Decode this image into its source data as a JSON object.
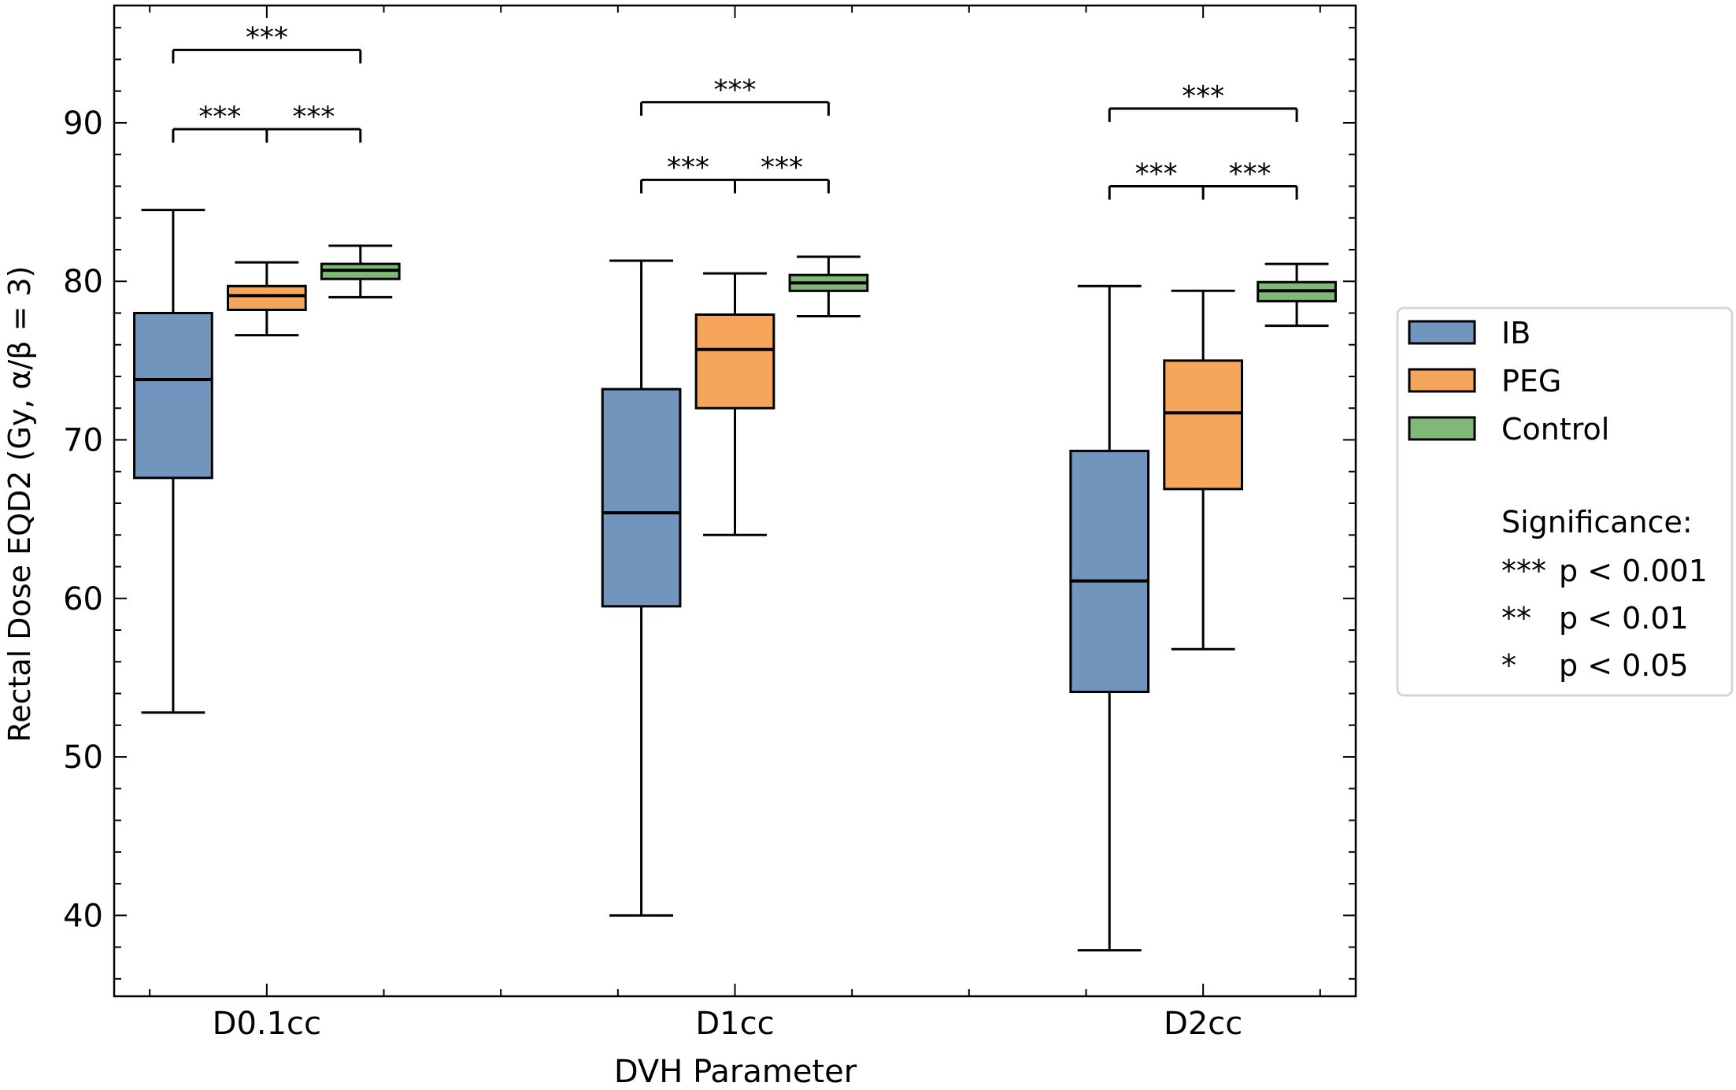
{
  "chart_data": {
    "type": "boxplot",
    "title": "",
    "xlabel": "DVH Parameter",
    "ylabel": "Rectal Dose EQD2 (Gy, α/β = 3)",
    "categories": [
      "D0.1cc",
      "D1cc",
      "D2cc"
    ],
    "ylim": [
      34.9,
      97.4
    ],
    "yticks": [
      40,
      50,
      60,
      70,
      80,
      90
    ],
    "yminor_step": 2,
    "grid": false,
    "legend_position": "outside-right",
    "series": [
      {
        "name": "IB",
        "color": "#7295bd",
        "boxes": [
          {
            "whisker_low": 52.8,
            "q1": 67.6,
            "median": 73.8,
            "q3": 78.0,
            "whisker_high": 84.5
          },
          {
            "whisker_low": 40.0,
            "q1": 59.5,
            "median": 65.4,
            "q3": 73.2,
            "whisker_high": 81.3
          },
          {
            "whisker_low": 37.8,
            "q1": 54.1,
            "median": 61.1,
            "q3": 69.3,
            "whisker_high": 79.7
          }
        ]
      },
      {
        "name": "PEG",
        "color": "#f5a65b",
        "boxes": [
          {
            "whisker_low": 76.6,
            "q1": 78.2,
            "median": 79.1,
            "q3": 79.7,
            "whisker_high": 81.2
          },
          {
            "whisker_low": 64.0,
            "q1": 72.0,
            "median": 75.7,
            "q3": 77.9,
            "whisker_high": 80.5
          },
          {
            "whisker_low": 56.8,
            "q1": 66.9,
            "median": 71.7,
            "q3": 75.0,
            "whisker_high": 79.4
          }
        ]
      },
      {
        "name": "Control",
        "color": "#80b878",
        "boxes": [
          {
            "whisker_low": 79.0,
            "q1": 80.15,
            "median": 80.7,
            "q3": 81.1,
            "whisker_high": 82.25
          },
          {
            "whisker_low": 77.8,
            "q1": 79.4,
            "median": 79.9,
            "q3": 80.4,
            "whisker_high": 81.55
          },
          {
            "whisker_low": 77.2,
            "q1": 78.75,
            "median": 79.4,
            "q3": 79.95,
            "whisker_high": 81.1
          }
        ]
      }
    ],
    "significance": [
      {
        "category": "D0.1cc",
        "pair_level": 89.6,
        "overall_level": 94.6,
        "ib_vs_peg": "***",
        "peg_vs_control": "***",
        "ib_vs_control": "***"
      },
      {
        "category": "D1cc",
        "pair_level": 86.4,
        "overall_level": 91.3,
        "ib_vs_peg": "***",
        "peg_vs_control": "***",
        "ib_vs_control": "***"
      },
      {
        "category": "D2cc",
        "pair_level": 86.0,
        "overall_level": 90.9,
        "ib_vs_peg": "***",
        "peg_vs_control": "***",
        "ib_vs_control": "***"
      }
    ],
    "legend": {
      "entries": [
        "IB",
        "PEG",
        "Control"
      ],
      "significance_title": "Significance:",
      "significance_lines": [
        {
          "stars": "***",
          "text": "p < 0.001"
        },
        {
          "stars": "**",
          "text": "p < 0.01"
        },
        {
          "stars": "*",
          "text": "p < 0.05"
        }
      ]
    }
  }
}
